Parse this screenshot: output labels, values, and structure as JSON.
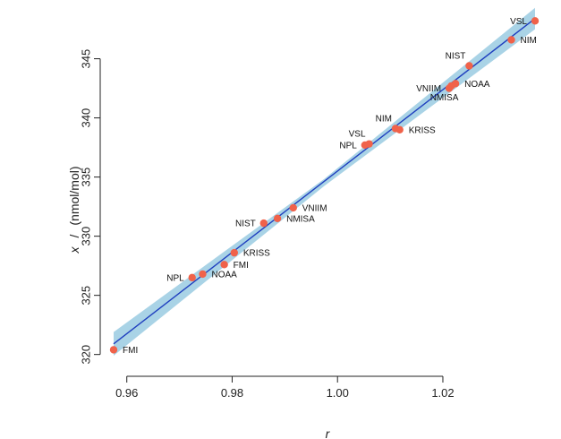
{
  "chart_data": {
    "type": "scatter",
    "title": "",
    "xlabel": "r",
    "ylabel_var": "x",
    "ylabel_sep": "/",
    "ylabel_unit": "(nmol/mol)",
    "xlim": [
      0.9575,
      1.0375
    ],
    "ylim": [
      319.9,
      348.3
    ],
    "xticks": [
      {
        "value": 0.96,
        "label": "0.96"
      },
      {
        "value": 0.98,
        "label": "0.98"
      },
      {
        "value": 1.0,
        "label": "1.00"
      },
      {
        "value": 1.02,
        "label": "1.02"
      }
    ],
    "yticks": [
      {
        "value": 320,
        "label": "320"
      },
      {
        "value": 325,
        "label": "325"
      },
      {
        "value": 330,
        "label": "330"
      },
      {
        "value": 335,
        "label": "335"
      },
      {
        "value": 340,
        "label": "340"
      },
      {
        "value": 345,
        "label": "345"
      }
    ],
    "colors": {
      "points": "#f0624a",
      "fit_line": "#1f3fbf",
      "band": "#a9d3e6",
      "axes": "#222222"
    },
    "fit_line": {
      "x": [
        0.9575,
        1.0375
      ],
      "y": [
        320.9,
        348.4
      ]
    },
    "confidence_band": {
      "x": [
        0.9575,
        0.9975,
        1.0375
      ],
      "lower": [
        319.9,
        334.25,
        347.5
      ],
      "upper": [
        321.9,
        334.85,
        349.3
      ]
    },
    "points": [
      {
        "label": "FMI",
        "x": 0.9575,
        "y": 320.4,
        "side": "right"
      },
      {
        "label": "FMI",
        "x": 0.9785,
        "y": 327.6,
        "side": "right"
      },
      {
        "label": "NPL",
        "x": 0.9724,
        "y": 326.5,
        "side": "left"
      },
      {
        "label": "NOAA",
        "x": 0.9744,
        "y": 326.8,
        "side": "right"
      },
      {
        "label": "KRISS",
        "x": 0.9804,
        "y": 328.6,
        "side": "right"
      },
      {
        "label": "NIST",
        "x": 0.986,
        "y": 331.1,
        "side": "left"
      },
      {
        "label": "NMISA",
        "x": 0.9886,
        "y": 331.5,
        "side": "right"
      },
      {
        "label": "VNIIM",
        "x": 0.9916,
        "y": 332.4,
        "side": "right"
      },
      {
        "label": "NPL",
        "x": 1.0052,
        "y": 337.7,
        "side": "left"
      },
      {
        "label": "VSL",
        "x": 1.006,
        "y": 337.8,
        "side": "above-left"
      },
      {
        "label": "NIM",
        "x": 1.011,
        "y": 339.1,
        "side": "above-left"
      },
      {
        "label": "KRISS",
        "x": 1.0118,
        "y": 339.0,
        "side": "right"
      },
      {
        "label": "VNIIM",
        "x": 1.0212,
        "y": 342.5,
        "side": "left"
      },
      {
        "label": "NMISA",
        "x": 1.0216,
        "y": 342.7,
        "side": "below-left"
      },
      {
        "label": "NOAA",
        "x": 1.0224,
        "y": 342.9,
        "side": "right"
      },
      {
        "label": "NIST",
        "x": 1.025,
        "y": 344.4,
        "side": "above-left"
      },
      {
        "label": "NIM",
        "x": 1.033,
        "y": 346.6,
        "side": "right"
      },
      {
        "label": "VSL",
        "x": 1.0375,
        "y": 348.2,
        "side": "left"
      }
    ]
  }
}
